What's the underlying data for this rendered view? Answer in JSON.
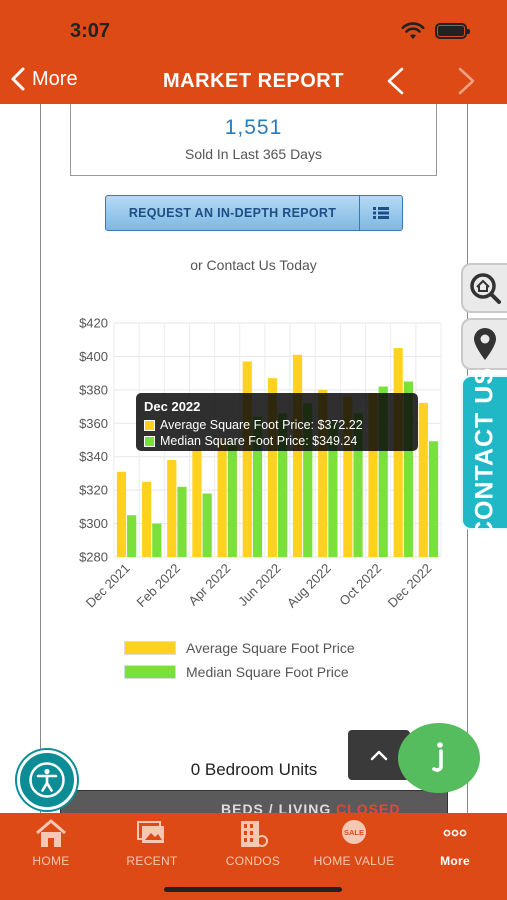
{
  "status_bar": {
    "time": "3:07"
  },
  "nav": {
    "back_label": "More",
    "title": "MARKET REPORT"
  },
  "stat": {
    "value": "1,551",
    "caption": "Sold In Last 365 Days"
  },
  "report_button": {
    "label": "REQUEST AN IN-DEPTH REPORT",
    "icon": "list-icon"
  },
  "contact_line": "or Contact Us Today",
  "chart_data": {
    "type": "bar",
    "categories": [
      "Dec 2021",
      "Jan 2022",
      "Feb 2022",
      "Mar 2022",
      "Apr 2022",
      "May 2022",
      "Jun 2022",
      "Jul 2022",
      "Aug 2022",
      "Sep 2022",
      "Oct 2022",
      "Nov 2022",
      "Dec 2022"
    ],
    "x_tick_labels": [
      "Dec 2021",
      "Feb 2022",
      "Apr 2022",
      "Jun 2022",
      "Aug 2022",
      "Oct 2022",
      "Dec 2022"
    ],
    "series": [
      {
        "name": "Average Square Foot Price",
        "color": "#ffd21f",
        "values": [
          331,
          325,
          338,
          344,
          350,
          397,
          387,
          401,
          380,
          376,
          378,
          405,
          372.22
        ]
      },
      {
        "name": "Median Square Foot Price",
        "color": "#7ce03a",
        "values": [
          305,
          300,
          322,
          318,
          350,
          364,
          366,
          372,
          362,
          366,
          382,
          385,
          349.24
        ]
      }
    ],
    "ylim": [
      280,
      420
    ],
    "y_ticks": [
      280,
      300,
      320,
      340,
      360,
      380,
      400,
      420
    ],
    "y_tick_labels": [
      "$280",
      "$300",
      "$320",
      "$340",
      "$360",
      "$380",
      "$400",
      "$420"
    ],
    "grid": true,
    "legend_position": "bottom",
    "tooltip": {
      "title": "Dec 2022",
      "lines": [
        "Average Square Foot Price: $372.22",
        "Median Square Foot Price: $349.24"
      ]
    }
  },
  "section": {
    "heading": "0 Bedroom Units"
  },
  "partial_bar": {
    "text_prefix": "BEDS / LIVING",
    "text_status": "CLOSED"
  },
  "side_tabs": {
    "contact_label": "CONTACT US"
  },
  "tabbar": {
    "items": [
      {
        "label": "HOME",
        "icon": "house-icon"
      },
      {
        "label": "RECENT",
        "icon": "recent-listings-icon"
      },
      {
        "label": "CONDOS",
        "icon": "condo-building-icon"
      },
      {
        "label": "HOME VALUE",
        "icon": "sale-tag-icon"
      },
      {
        "label": "More",
        "icon": "more-dots-icon"
      }
    ]
  },
  "colors": {
    "brand": "#dd4a16",
    "accent": "#2b7bb9",
    "contact_tab": "#20b8c6",
    "chat": "#55bd5e"
  }
}
